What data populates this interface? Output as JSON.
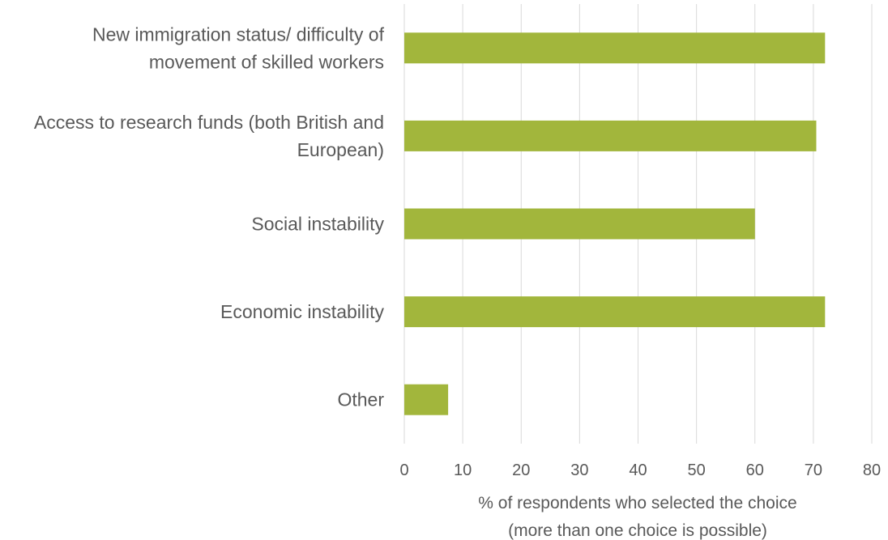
{
  "chart_data": {
    "type": "bar",
    "orientation": "horizontal",
    "categories": [
      [
        "New immigration status/ difficulty of",
        "movement of skilled workers"
      ],
      [
        "Access to research funds (both British and",
        "European)"
      ],
      [
        "Social instability"
      ],
      [
        "Economic instability"
      ],
      [
        "Other"
      ]
    ],
    "values": [
      72,
      70.5,
      60,
      72,
      7.5
    ],
    "xlabel": [
      "% of respondents who selected the choice",
      "(more than one choice is possible)"
    ],
    "xlim": [
      0,
      80
    ],
    "xticks": [
      0,
      10,
      20,
      30,
      40,
      50,
      60,
      70,
      80
    ],
    "grid": "vertical",
    "legend": "none",
    "bar_color": "#a2b63c",
    "text_color": "#595959",
    "grid_color": "#d9d9d9"
  }
}
